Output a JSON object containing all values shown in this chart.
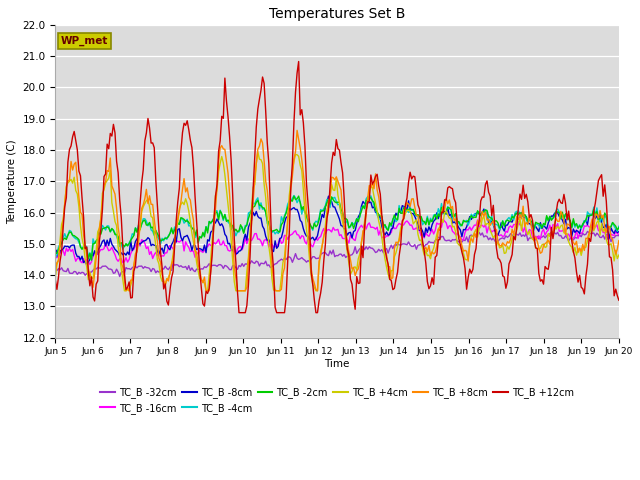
{
  "title": "Temperatures Set B",
  "xlabel": "Time",
  "ylabel": "Temperature (C)",
  "ylim": [
    12.0,
    22.0
  ],
  "yticks": [
    12.0,
    13.0,
    14.0,
    15.0,
    16.0,
    17.0,
    18.0,
    19.0,
    20.0,
    21.0,
    22.0
  ],
  "bg_color": "#dcdcdc",
  "series": [
    {
      "label": "TC_B -32cm",
      "color": "#9933cc"
    },
    {
      "label": "TC_B -16cm",
      "color": "#ff00ff"
    },
    {
      "label": "TC_B -8cm",
      "color": "#0000cc"
    },
    {
      "label": "TC_B -4cm",
      "color": "#00cccc"
    },
    {
      "label": "TC_B -2cm",
      "color": "#00cc00"
    },
    {
      "label": "TC_B +4cm",
      "color": "#cccc00"
    },
    {
      "label": "TC_B +8cm",
      "color": "#ff8800"
    },
    {
      "label": "TC_B +12cm",
      "color": "#cc0000"
    }
  ],
  "wp_met_box_facecolor": "#cccc00",
  "wp_met_box_edgecolor": "#888800",
  "wp_met_text_color": "#660000",
  "figsize": [
    6.4,
    4.8
  ],
  "dpi": 100
}
